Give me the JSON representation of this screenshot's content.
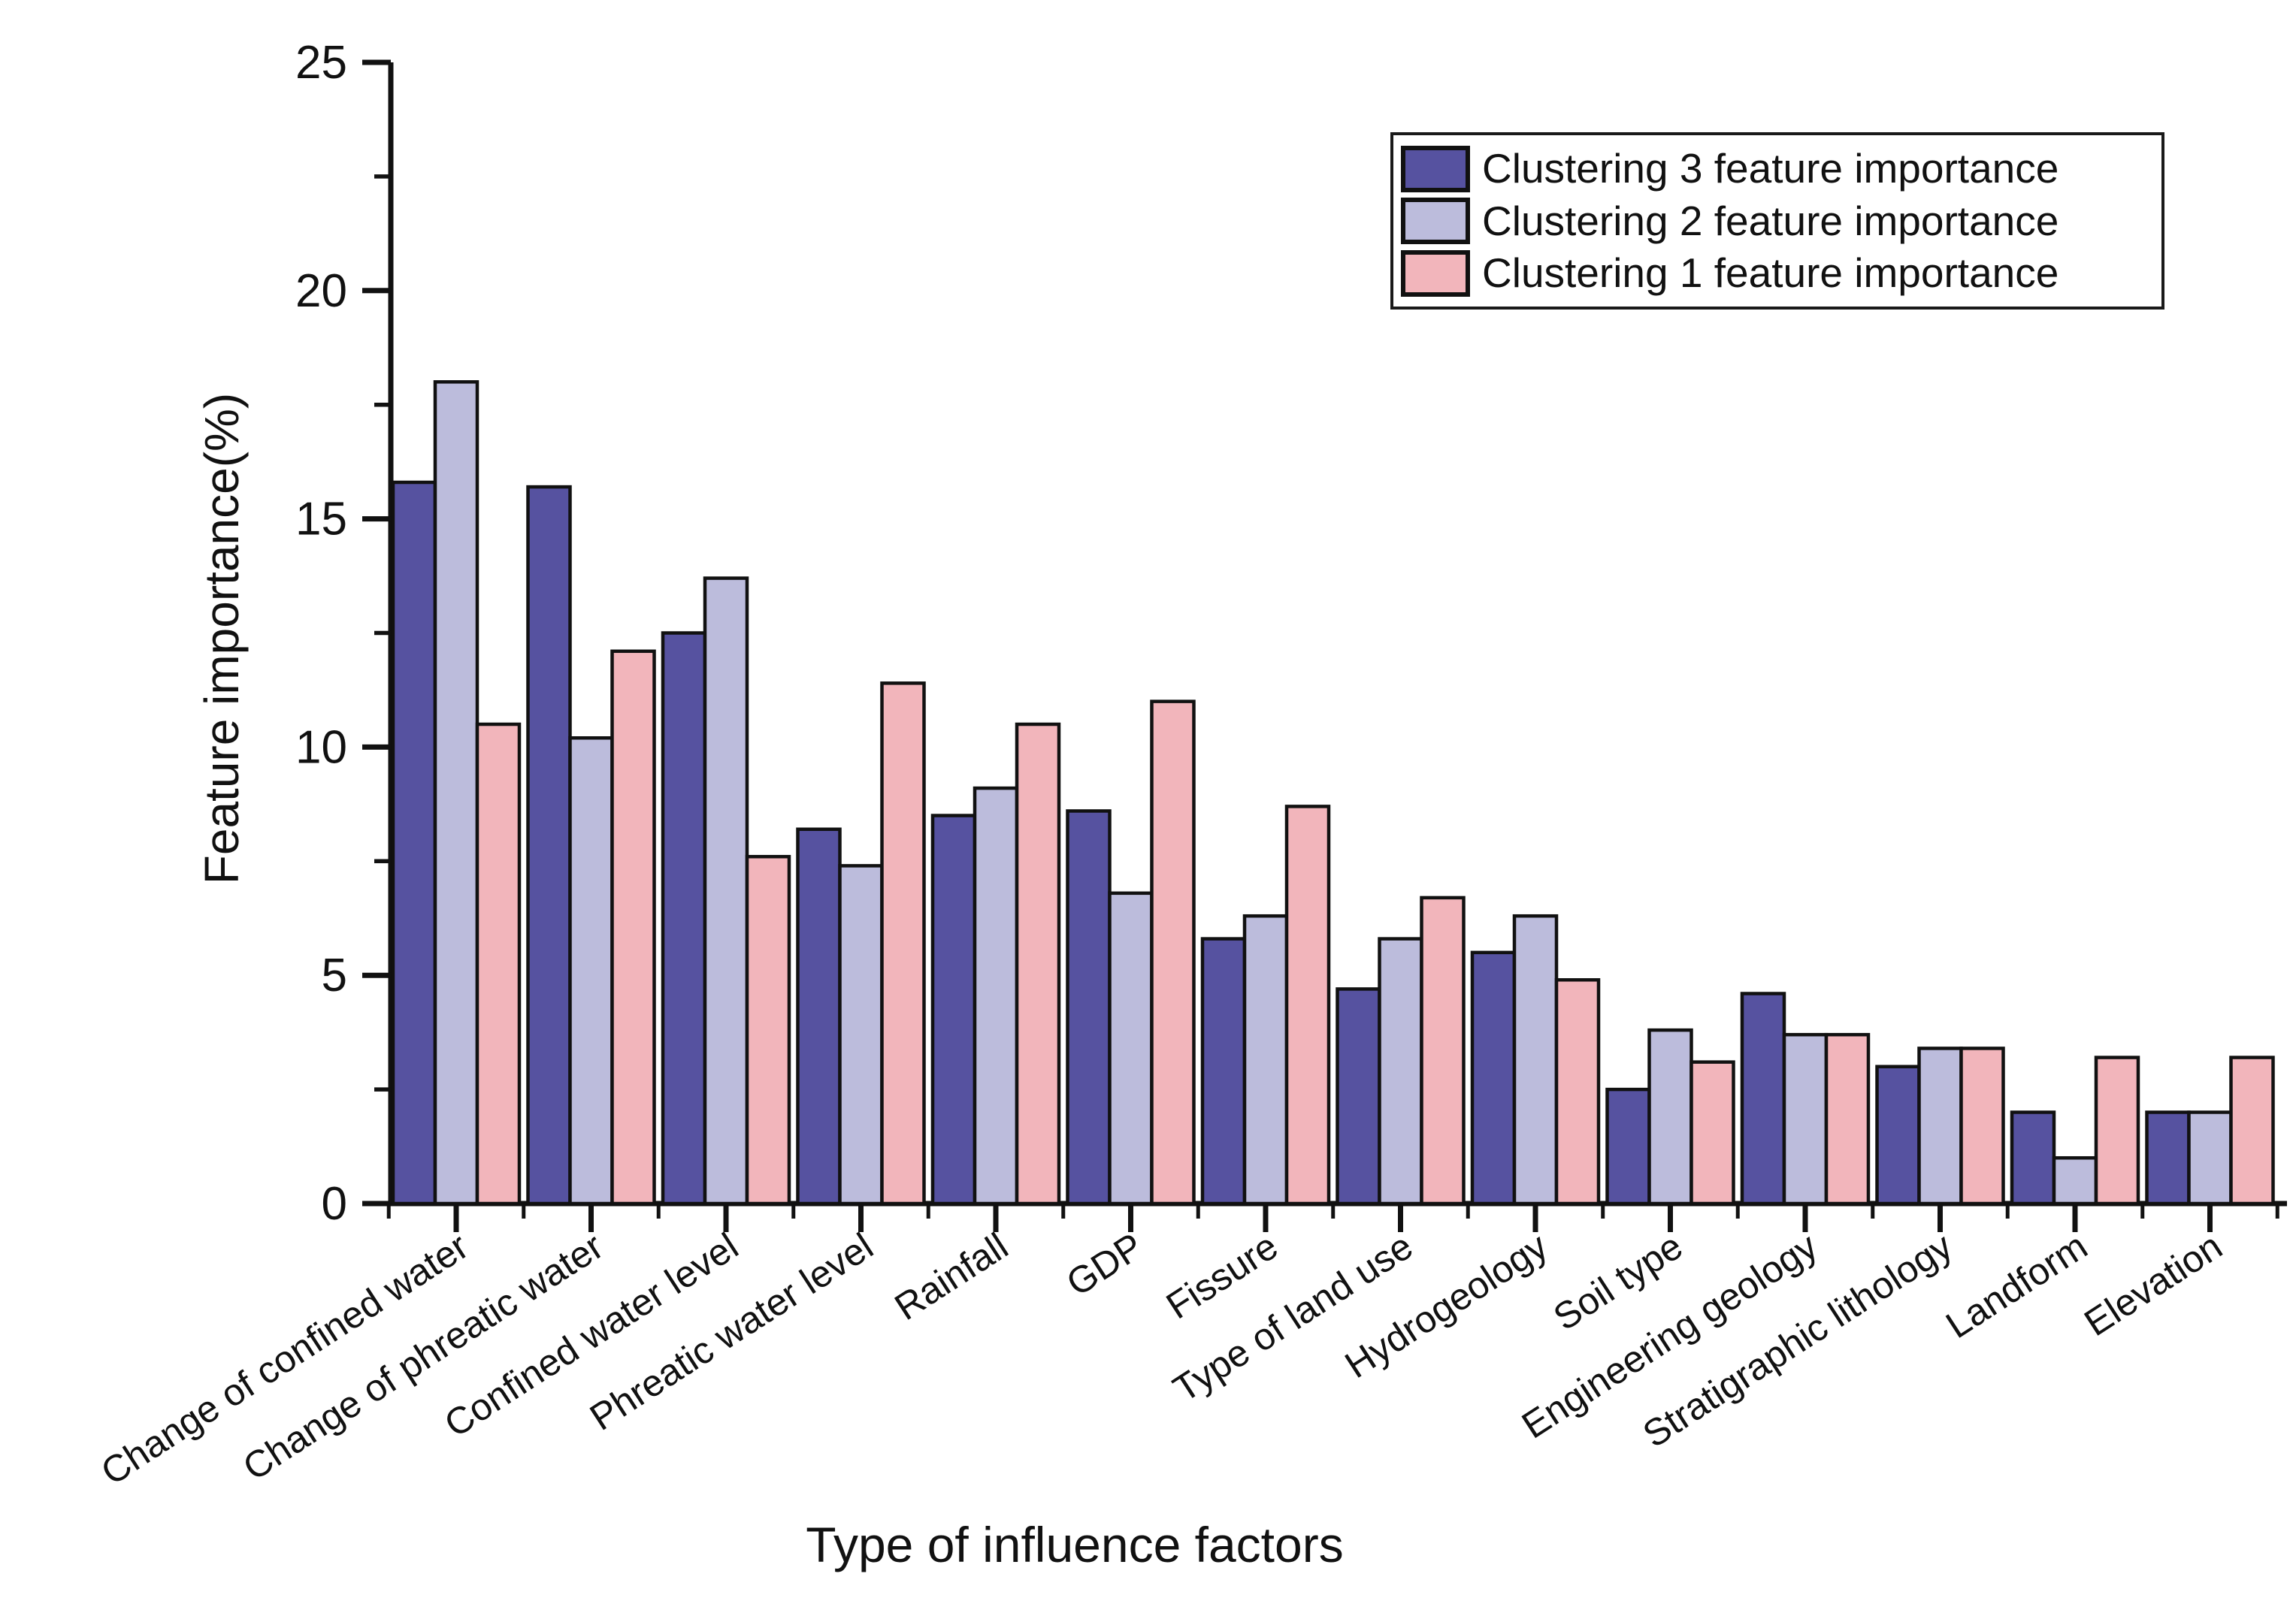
{
  "chart_data": {
    "type": "bar",
    "title": "",
    "xlabel": "Type of influence factors",
    "ylabel": "Feature importance(%)",
    "ylim": [
      0,
      25
    ],
    "y_major_ticks": [
      0,
      5,
      10,
      15,
      20,
      25
    ],
    "y_minor_step": 2.5,
    "grid": false,
    "legend_position": "top-right-inside",
    "bar_outline_color": "#111111",
    "categories": [
      "Change of confined water",
      "Change of phreatic water",
      "Confined water level",
      "Phreatic water level",
      "Rainfall",
      "GDP",
      "Fissure",
      "Type of land use",
      "Hydrogeology",
      "Soil type",
      "Engineering geology",
      "Stratigraphic lithology",
      "Landform",
      "Elevation"
    ],
    "series": [
      {
        "name": "Clustering 3 feature importance",
        "color": "#5652A0",
        "values": [
          15.8,
          15.7,
          12.5,
          8.2,
          8.5,
          8.6,
          5.8,
          4.7,
          5.5,
          2.5,
          4.6,
          3.0,
          2.0,
          2.0
        ]
      },
      {
        "name": "Clustering 2 feature importance",
        "color": "#BCBCDC",
        "values": [
          18.0,
          10.2,
          13.7,
          7.4,
          9.1,
          6.8,
          6.3,
          5.8,
          6.3,
          3.8,
          3.7,
          3.4,
          1.0,
          2.0
        ]
      },
      {
        "name": "Clustering 1 feature importance",
        "color": "#F2B5BB",
        "values": [
          10.5,
          12.1,
          7.6,
          11.4,
          10.5,
          11.0,
          8.7,
          6.7,
          4.9,
          3.1,
          3.7,
          3.4,
          3.2,
          3.2
        ]
      }
    ]
  }
}
